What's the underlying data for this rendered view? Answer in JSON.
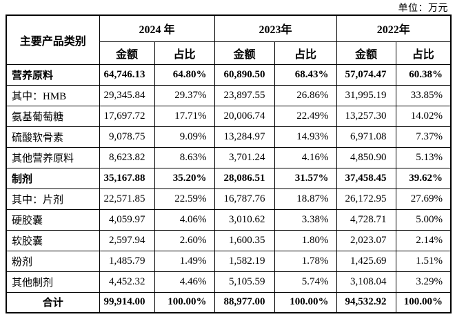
{
  "unit_label": "单位：万元",
  "colors": {
    "border": "#000000",
    "text": "#000000",
    "background": "#ffffff"
  },
  "table": {
    "corner_header": "主要产品类别",
    "year_groups": [
      {
        "year": "2024 年",
        "sub_headers": [
          "金额",
          "占比"
        ]
      },
      {
        "year": "2023年",
        "sub_headers": [
          "金额",
          "占比"
        ]
      },
      {
        "year": "2022年",
        "sub_headers": [
          "金额",
          "占比"
        ]
      }
    ],
    "rows": [
      {
        "label": "营养原料",
        "bold": true,
        "label_align": "left",
        "values": [
          "64,746.13",
          "64.80%",
          "60,890.50",
          "68.43%",
          "57,074.47",
          "60.38%"
        ]
      },
      {
        "label": "其中：HMB",
        "bold": false,
        "label_align": "left",
        "values": [
          "29,345.84",
          "29.37%",
          "23,897.55",
          "26.86%",
          "31,995.19",
          "33.85%"
        ]
      },
      {
        "label": "氨基葡萄糖",
        "bold": false,
        "label_align": "left",
        "values": [
          "17,697.72",
          "17.71%",
          "20,006.74",
          "22.49%",
          "13,257.30",
          "14.02%"
        ]
      },
      {
        "label": "硫酸软骨素",
        "bold": false,
        "label_align": "left",
        "values": [
          "9,078.75",
          "9.09%",
          "13,284.97",
          "14.93%",
          "6,971.08",
          "7.37%"
        ]
      },
      {
        "label": "其他营养原料",
        "bold": false,
        "label_align": "left",
        "values": [
          "8,623.82",
          "8.63%",
          "3,701.24",
          "4.16%",
          "4,850.90",
          "5.13%"
        ]
      },
      {
        "label": "制剂",
        "bold": true,
        "label_align": "left",
        "values": [
          "35,167.88",
          "35.20%",
          "28,086.51",
          "31.57%",
          "37,458.45",
          "39.62%"
        ]
      },
      {
        "label": "其中：片剂",
        "bold": false,
        "label_align": "left",
        "values": [
          "22,571.85",
          "22.59%",
          "16,787.76",
          "18.87%",
          "26,172.95",
          "27.69%"
        ]
      },
      {
        "label": "硬胶囊",
        "bold": false,
        "label_align": "left",
        "values": [
          "4,059.97",
          "4.06%",
          "3,010.62",
          "3.38%",
          "4,728.71",
          "5.00%"
        ]
      },
      {
        "label": "软胶囊",
        "bold": false,
        "label_align": "left",
        "values": [
          "2,597.94",
          "2.60%",
          "1,600.35",
          "1.80%",
          "2,023.07",
          "2.14%"
        ]
      },
      {
        "label": "粉剂",
        "bold": false,
        "label_align": "left",
        "values": [
          "1,485.79",
          "1.49%",
          "1,582.19",
          "1.78%",
          "1,425.69",
          "1.51%"
        ]
      },
      {
        "label": "其他制剂",
        "bold": false,
        "label_align": "left",
        "values": [
          "4,452.32",
          "4.46%",
          "5,105.59",
          "5.74%",
          "3,108.04",
          "3.29%"
        ]
      },
      {
        "label": "合计",
        "bold": true,
        "label_align": "center",
        "values": [
          "99,914.00",
          "100.00%",
          "88,977.00",
          "100.00%",
          "94,532.92",
          "100.00%"
        ]
      }
    ]
  }
}
